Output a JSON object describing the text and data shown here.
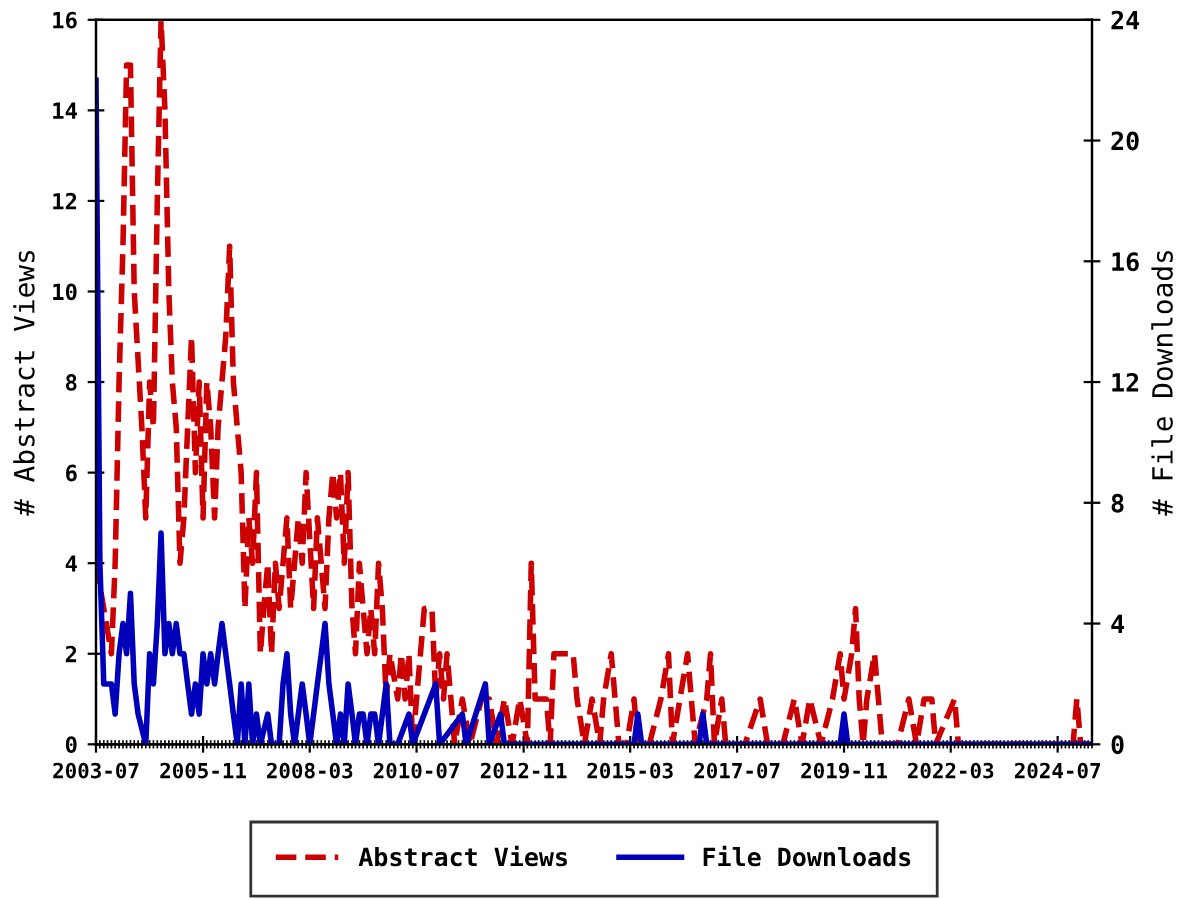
{
  "chart_data": {
    "type": "line",
    "ylabel": "# Abstract Views",
    "y2label": "# File Downloads",
    "xlim": [
      "2003-07",
      "2025-04"
    ],
    "xticks": [
      "2003-07",
      "2005-11",
      "2008-03",
      "2010-07",
      "2012-11",
      "2015-03",
      "2017-07",
      "2019-11",
      "2022-03",
      "2024-07"
    ],
    "ylim": [
      0,
      16
    ],
    "yticks": [
      0,
      2,
      4,
      6,
      8,
      10,
      12,
      14,
      16
    ],
    "y2lim": [
      0,
      24
    ],
    "y2ticks": [
      0,
      4,
      8,
      12,
      16,
      20,
      24
    ],
    "legend": "bottom",
    "grid": false,
    "series": [
      {
        "name": "Abstract Views",
        "color": "#cc0000",
        "line_style": "dashed",
        "x": [
          "2003-07",
          "2003-09",
          "2003-11",
          "2003-12",
          "2004-01",
          "2004-02",
          "2004-03",
          "2004-04",
          "2004-05",
          "2004-07",
          "2004-08",
          "2004-09",
          "2004-10",
          "2004-11",
          "2004-12",
          "2005-01",
          "2005-02",
          "2005-03",
          "2005-04",
          "2005-05",
          "2005-06",
          "2005-07",
          "2005-08",
          "2005-09",
          "2005-10",
          "2005-11",
          "2005-12",
          "2006-01",
          "2006-02",
          "2006-03",
          "2006-05",
          "2006-06",
          "2006-07",
          "2006-08",
          "2006-09",
          "2006-10",
          "2006-11",
          "2006-12",
          "2007-01",
          "2007-02",
          "2007-03",
          "2007-04",
          "2007-05",
          "2007-06",
          "2007-07",
          "2007-08",
          "2007-09",
          "2007-10",
          "2007-11",
          "2007-12",
          "2008-01",
          "2008-02",
          "2008-04",
          "2008-05",
          "2008-06",
          "2008-07",
          "2008-08",
          "2008-09",
          "2008-10",
          "2008-11",
          "2008-12",
          "2009-01",
          "2009-02",
          "2009-03",
          "2009-04",
          "2009-05",
          "2009-06",
          "2009-07",
          "2009-08",
          "2009-09",
          "2009-10",
          "2009-11",
          "2009-12",
          "2010-02",
          "2010-03",
          "2010-04",
          "2010-05",
          "2010-06",
          "2010-07",
          "2010-08",
          "2010-09",
          "2010-10",
          "2010-11",
          "2010-12",
          "2011-01",
          "2011-02",
          "2011-03",
          "2011-04",
          "2011-05",
          "2011-07",
          "2011-09",
          "2011-12",
          "2012-02",
          "2012-04",
          "2012-06",
          "2012-08",
          "2012-10",
          "2012-12",
          "2013-01",
          "2013-02",
          "2013-03",
          "2013-05",
          "2013-06",
          "2013-07",
          "2013-10",
          "2013-12",
          "2014-01",
          "2014-03",
          "2014-05",
          "2014-07",
          "2014-08",
          "2014-10",
          "2014-11",
          "2014-12",
          "2015-02",
          "2015-04",
          "2015-05",
          "2015-08",
          "2015-11",
          "2016-01",
          "2016-02",
          "2016-04",
          "2016-06",
          "2016-07",
          "2016-08",
          "2016-11",
          "2016-12",
          "2017-01",
          "2017-03",
          "2017-04",
          "2017-09",
          "2018-01",
          "2018-03",
          "2018-07",
          "2018-10",
          "2018-12",
          "2019-02",
          "2019-05",
          "2019-08",
          "2019-10",
          "2019-11",
          "2020-01",
          "2020-02",
          "2020-03",
          "2020-04",
          "2020-05",
          "2020-07",
          "2020-08",
          "2020-09",
          "2021-01",
          "2021-04",
          "2021-06",
          "2021-08",
          "2021-10",
          "2021-11",
          "2022-04",
          "2022-05",
          "2022-10",
          "2024-11",
          "2024-12",
          "2025-01",
          "2025-04"
        ],
        "values": [
          4,
          3,
          2,
          4,
          8,
          11,
          15,
          15,
          10,
          7,
          5,
          8,
          7,
          12,
          16,
          14,
          10,
          8,
          7,
          4,
          5,
          7,
          9,
          6,
          8,
          5,
          8,
          7,
          5,
          7,
          9,
          11,
          8,
          7,
          6,
          3,
          5,
          4,
          6,
          2,
          3,
          4,
          2,
          4,
          3,
          4,
          5,
          3,
          4,
          5,
          4,
          6,
          3,
          5,
          4,
          3,
          5,
          6,
          5,
          6,
          4,
          6,
          3,
          2,
          4,
          3,
          2,
          3,
          2,
          4,
          3,
          1,
          2,
          1,
          2,
          1,
          2,
          0,
          1,
          2,
          3,
          3,
          3,
          1,
          2,
          1,
          2,
          1,
          0,
          1,
          0,
          1,
          1,
          0,
          1,
          0,
          1,
          0,
          4,
          1,
          1,
          1,
          0,
          2,
          2,
          2,
          1,
          0,
          1,
          0,
          1,
          2,
          1,
          0,
          0,
          1,
          0,
          0,
          1,
          2,
          0,
          1,
          2,
          1,
          0,
          1,
          2,
          0,
          1,
          0,
          0,
          1,
          0,
          0,
          1,
          0,
          1,
          0,
          1,
          2,
          1,
          2,
          3,
          1,
          0,
          1,
          2,
          1,
          0,
          0,
          1,
          0,
          1,
          1,
          0,
          1,
          0,
          0,
          0,
          1,
          0,
          0
        ]
      },
      {
        "name": "File Downloads",
        "color": "#0000bb",
        "line_style": "solid",
        "axis": "y2",
        "x": [
          "2003-07",
          "2003-08",
          "2003-09",
          "2003-10",
          "2003-11",
          "2003-12",
          "2004-01",
          "2004-02",
          "2004-03",
          "2004-04",
          "2004-05",
          "2004-06",
          "2004-08",
          "2004-09",
          "2004-10",
          "2004-11",
          "2004-12",
          "2005-01",
          "2005-02",
          "2005-03",
          "2005-04",
          "2005-05",
          "2005-06",
          "2005-07",
          "2005-08",
          "2005-09",
          "2005-10",
          "2005-11",
          "2005-12",
          "2006-01",
          "2006-02",
          "2006-03",
          "2006-04",
          "2006-05",
          "2006-06",
          "2006-07",
          "2006-08",
          "2006-09",
          "2006-10",
          "2006-11",
          "2006-12",
          "2007-01",
          "2007-02",
          "2007-04",
          "2007-05",
          "2007-07",
          "2007-08",
          "2007-09",
          "2007-10",
          "2007-11",
          "2007-12",
          "2008-01",
          "2008-02",
          "2008-03",
          "2008-04",
          "2008-05",
          "2008-06",
          "2008-07",
          "2008-08",
          "2008-09",
          "2008-10",
          "2008-11",
          "2008-12",
          "2009-01",
          "2009-02",
          "2009-03",
          "2009-04",
          "2009-05",
          "2009-06",
          "2009-07",
          "2009-08",
          "2009-09",
          "2009-11",
          "2009-12",
          "2010-02",
          "2010-05",
          "2010-06",
          "2010-12",
          "2011-01",
          "2011-07",
          "2011-08",
          "2012-01",
          "2012-02",
          "2012-05",
          "2012-06",
          "2015-04",
          "2015-05",
          "2015-06",
          "2016-09",
          "2016-10",
          "2016-11",
          "2019-10",
          "2019-11",
          "2019-12",
          "2025-04"
        ],
        "values": [
          22,
          6,
          2,
          2,
          2,
          1,
          3,
          4,
          3,
          5,
          2,
          1,
          0,
          3,
          2,
          4,
          7,
          3,
          4,
          3,
          4,
          3,
          3,
          2,
          1,
          2,
          1,
          3,
          2,
          3,
          2,
          3,
          4,
          3,
          2,
          1,
          0,
          2,
          0,
          2,
          0,
          1,
          0,
          1,
          0,
          0,
          2,
          3,
          1,
          0,
          1,
          2,
          1,
          0,
          1,
          2,
          3,
          4,
          2,
          1,
          0,
          1,
          0,
          2,
          1,
          0,
          1,
          1,
          0,
          1,
          1,
          0,
          2,
          0,
          0,
          1,
          0,
          2,
          0,
          1,
          0,
          2,
          0,
          1,
          0,
          0,
          1,
          0,
          0,
          1,
          0,
          0,
          1,
          0,
          0
        ]
      }
    ]
  }
}
